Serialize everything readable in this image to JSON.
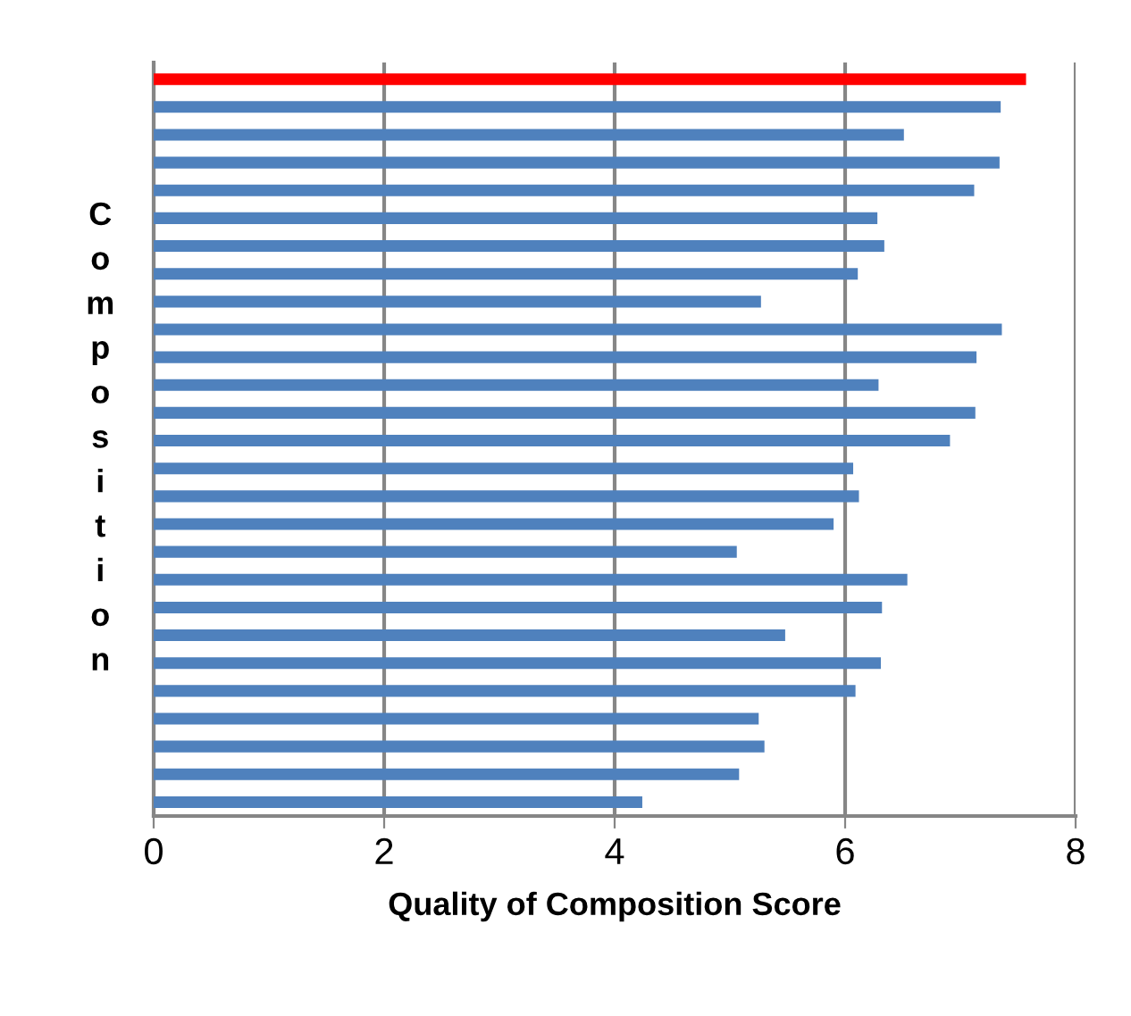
{
  "chart_data": {
    "type": "bar",
    "orientation": "horizontal",
    "xlabel": "Quality of Composition Score",
    "ylabel": "Composition",
    "categories": [
      null,
      null,
      null,
      null,
      null,
      null,
      null,
      null,
      null,
      null,
      null,
      null,
      null,
      null,
      null,
      null,
      null,
      null,
      null,
      null,
      null,
      null,
      null,
      null,
      null,
      null,
      null
    ],
    "values": [
      7.57,
      7.35,
      6.51,
      7.34,
      7.12,
      6.28,
      6.34,
      6.11,
      5.27,
      7.36,
      7.14,
      6.29,
      7.13,
      6.91,
      6.07,
      6.12,
      5.9,
      5.06,
      6.54,
      6.32,
      5.48,
      6.31,
      6.09,
      5.25,
      5.3,
      5.08,
      4.24
    ],
    "colors": [
      "#ff0000",
      "#4f81bd",
      "#4f81bd",
      "#4f81bd",
      "#4f81bd",
      "#4f81bd",
      "#4f81bd",
      "#4f81bd",
      "#4f81bd",
      "#4f81bd",
      "#4f81bd",
      "#4f81bd",
      "#4f81bd",
      "#4f81bd",
      "#4f81bd",
      "#4f81bd",
      "#4f81bd",
      "#4f81bd",
      "#4f81bd",
      "#4f81bd",
      "#4f81bd",
      "#4f81bd",
      "#4f81bd",
      "#4f81bd",
      "#4f81bd",
      "#4f81bd",
      "#4f81bd"
    ],
    "xlim": [
      0,
      8
    ],
    "xticks": [
      0,
      2,
      4,
      6,
      8
    ],
    "grid": "x"
  }
}
